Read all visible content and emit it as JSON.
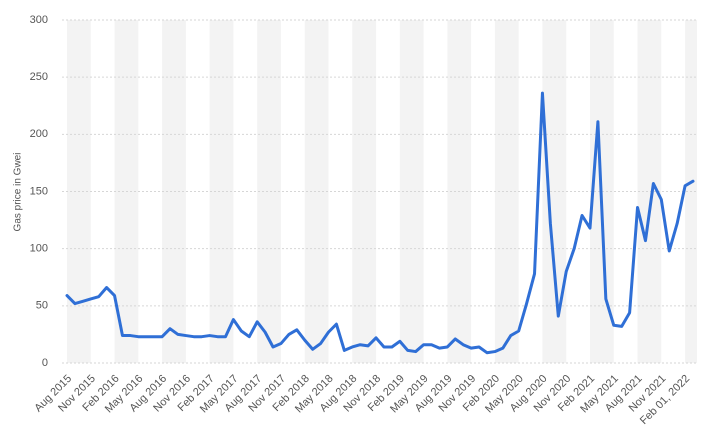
{
  "chart_data": {
    "type": "line",
    "y_label": "Gas price in Gwei",
    "categories": [
      "Aug 2015",
      null,
      null,
      "Nov 2015",
      null,
      null,
      "Feb 2016",
      null,
      null,
      "May 2016",
      null,
      null,
      "Aug 2016",
      null,
      null,
      "Nov 2016",
      null,
      null,
      "Feb 2017",
      null,
      null,
      "May 2017",
      null,
      null,
      "Aug 2017",
      null,
      null,
      "Nov 2017",
      null,
      null,
      "Feb 2018",
      null,
      null,
      "May 2018",
      null,
      null,
      "Aug 2018",
      null,
      null,
      "Nov 2018",
      null,
      null,
      "Feb 2019",
      null,
      null,
      "May 2019",
      null,
      null,
      "Aug 2019",
      null,
      null,
      "Nov 2019",
      null,
      null,
      "Feb 2020",
      null,
      null,
      "May 2020",
      null,
      null,
      "Aug 2020",
      null,
      null,
      "Nov 2020",
      null,
      null,
      "Feb 2021",
      null,
      null,
      "May 2021",
      null,
      null,
      "Aug 2021",
      null,
      null,
      "Nov 2021",
      null,
      null,
      "Feb 01, 2022",
      null
    ],
    "series": [
      {
        "name": "Gas price",
        "color": "#2f6fd6",
        "values": [
          59,
          52,
          54,
          56,
          58,
          66,
          59,
          24,
          24,
          23,
          23,
          23,
          23,
          30,
          25,
          24,
          23,
          23,
          24,
          23,
          23,
          38,
          28,
          23,
          36,
          27,
          14,
          17,
          25,
          29,
          20,
          12,
          17,
          27,
          34,
          11,
          14,
          16,
          15,
          22,
          14,
          14,
          19,
          11,
          10,
          16,
          16,
          13,
          14,
          21,
          16,
          13,
          14,
          9,
          10,
          13,
          24,
          28,
          52,
          78,
          236,
          122,
          41,
          80,
          100,
          129,
          118,
          211,
          56,
          33,
          32,
          44,
          136,
          107,
          157,
          143,
          98,
          122,
          155,
          159
        ]
      }
    ],
    "ylim": [
      0,
      300
    ],
    "yticks": [
      0,
      50,
      100,
      150,
      200,
      250,
      300
    ],
    "grid": true
  }
}
